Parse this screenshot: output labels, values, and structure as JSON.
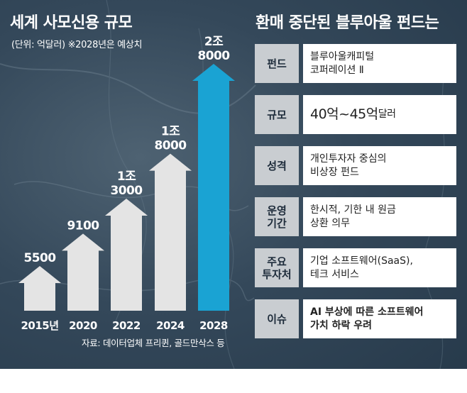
{
  "left": {
    "title": "세계 사모신용 규모",
    "subtitle": "(단위: 억달러) ※2028년은 예상치",
    "source": "자료: 데이터업체 프리퀸, 골드만삭스 등"
  },
  "right": {
    "title": "환매 중단된 블루아울 펀드는",
    "rows": [
      {
        "label": "펀드",
        "value": "블루아울캐피털\n코퍼레이션 Ⅱ"
      },
      {
        "label": "규모",
        "value": "40억~45억",
        "unit": "달러"
      },
      {
        "label": "성격",
        "value": "개인투자자 중심의\n비상장 펀드"
      },
      {
        "label": "운영\n기간",
        "value": "한시적, 기한 내 원금\n상환 의무"
      },
      {
        "label": "주요\n투자처",
        "value": "기업 소프트웨어(SaaS),\n테크 서비스"
      },
      {
        "label": "이슈",
        "value": "AI 부상에 따른 소프트웨어\n가치 하락 우려"
      }
    ]
  },
  "chart_data": {
    "type": "bar",
    "title": "세계 사모신용 규모",
    "unit": "억달러",
    "categories": [
      "2015년",
      "2020",
      "2022",
      "2024",
      "2028"
    ],
    "values": [
      5500,
      9100,
      13000,
      18000,
      28000
    ],
    "value_labels": [
      "5500",
      "9100",
      "1조\n3000",
      "1조\n8000",
      "2조\n8000"
    ],
    "forecast_index": 4,
    "colors": {
      "actual": "#e4e4e4",
      "forecast": "#1aa3d3",
      "label": "#ffffff"
    }
  }
}
